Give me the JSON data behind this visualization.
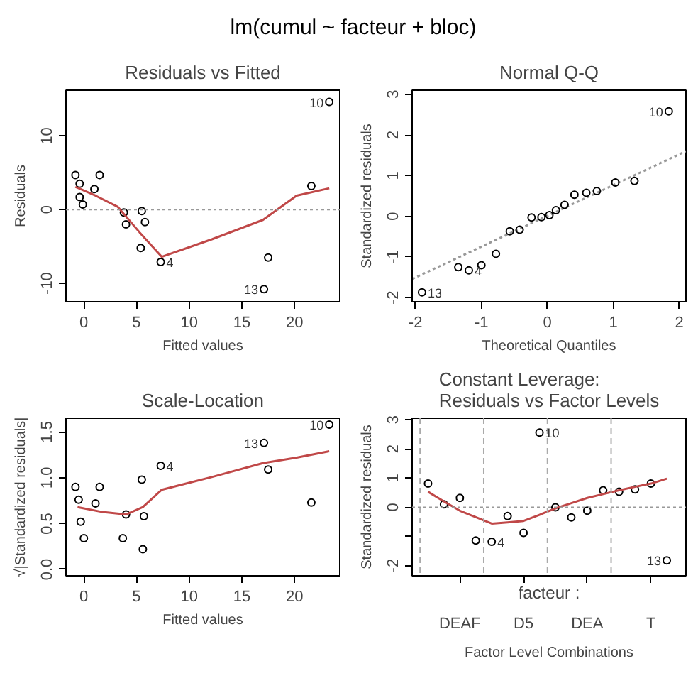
{
  "chart_data": [
    {
      "type": "other",
      "title": "lm(cumul ~ facteur + bloc)"
    },
    {
      "type": "scatter",
      "title": "Residuals vs Fitted",
      "xlabel": "Fitted values",
      "ylabel": "Residuals",
      "xlim": [
        -1.7,
        24.3
      ],
      "ylim": [
        -12.5,
        16.2
      ],
      "xticks": [
        0,
        5,
        10,
        15,
        20
      ],
      "yticks": [
        -10,
        0,
        10
      ],
      "series": [
        {
          "type": "scatter",
          "marker": "circle",
          "color": "#000000",
          "x": [
            -0.8,
            -0.4,
            -0.4,
            -0.1,
            1.0,
            1.5,
            3.8,
            4.0,
            5.5,
            5.8,
            5.4,
            7.3,
            17.1,
            17.5,
            21.6,
            23.3
          ],
          "values": [
            4.7,
            3.5,
            1.7,
            0.7,
            2.8,
            4.7,
            -0.4,
            -2.0,
            -0.2,
            -1.7,
            -5.2,
            -7.1,
            -10.8,
            -6.5,
            3.2,
            14.6
          ]
        },
        {
          "type": "line",
          "line_style": "solid",
          "color": "#c04848",
          "x": [
            -0.8,
            1.1,
            3.2,
            5.3,
            7.4,
            12.2,
            17.0,
            20.2,
            23.3
          ],
          "values": [
            3.1,
            1.9,
            0.4,
            -3.1,
            -6.4,
            -4.0,
            -1.4,
            1.9,
            2.9
          ]
        }
      ],
      "ref_lines": [
        {
          "axis": "y",
          "value": 0,
          "color": "#999999",
          "line_style": "dotted"
        }
      ],
      "annotations": [
        {
          "text": "10",
          "x": 23.3,
          "y": 14.6
        },
        {
          "text": "13",
          "x": 17.1,
          "y": -10.8
        },
        {
          "text": "4",
          "x": 7.3,
          "y": -7.1
        }
      ]
    },
    {
      "type": "scatter",
      "title": "Normal Q-Q",
      "xlabel": "Theoretical Quantiles",
      "ylabel": "Standardized residuals",
      "xlim": [
        -2.05,
        2.1
      ],
      "ylim": [
        -2.1,
        3.1
      ],
      "xticks": [
        -2,
        -1,
        0,
        1,
        2
      ],
      "yticks": [
        -2,
        -1,
        0,
        1,
        2,
        3
      ],
      "series": [
        {
          "type": "line",
          "line_style": "dotted",
          "color": "#999999",
          "x": [
            -2.05,
            2.1
          ],
          "values": [
            -1.54,
            1.6
          ]
        },
        {
          "type": "scatter",
          "marker": "circle",
          "color": "#000000",
          "x": [
            -1.9,
            -1.35,
            -1.19,
            -1.0,
            -0.78,
            -0.57,
            -0.42,
            -0.24,
            -0.09,
            0.03,
            0.13,
            0.26,
            0.41,
            0.59,
            0.75,
            1.03,
            1.32,
            1.84
          ],
          "values": [
            -1.87,
            -1.25,
            -1.33,
            -1.2,
            -0.92,
            -0.37,
            -0.33,
            -0.03,
            -0.02,
            0.03,
            0.15,
            0.28,
            0.53,
            0.58,
            0.62,
            0.83,
            0.87,
            2.58
          ]
        }
      ],
      "annotations": [
        {
          "text": "10",
          "x": 1.84,
          "y": 2.58
        },
        {
          "text": "13",
          "x": -1.9,
          "y": -1.87
        },
        {
          "text": "4",
          "x": -1.19,
          "y": -1.33
        }
      ]
    },
    {
      "type": "scatter",
      "title": "Scale-Location",
      "xlabel": "Fitted values",
      "ylabel": "√|Standardized residuals|",
      "xlim": [
        -1.7,
        24.3
      ],
      "ylim": [
        -0.07,
        1.65
      ],
      "xticks": [
        0,
        5,
        10,
        15,
        20
      ],
      "yticks": [
        {
          "value": 0,
          "label": "0.0"
        },
        0.5,
        {
          "value": 1,
          "label": "1.0"
        },
        1.5
      ],
      "series": [
        {
          "type": "scatter",
          "marker": "circle",
          "color": "#000000",
          "x": [
            -0.8,
            -0.5,
            -0.3,
            0.0,
            1.1,
            1.5,
            4.0,
            3.7,
            5.5,
            5.7,
            5.6,
            7.3,
            17.1,
            17.5,
            21.6,
            23.3
          ],
          "values": [
            0.9,
            0.76,
            0.52,
            0.34,
            0.72,
            0.9,
            0.6,
            0.34,
            0.98,
            0.58,
            0.22,
            1.13,
            1.38,
            1.09,
            0.73,
            1.58
          ]
        },
        {
          "type": "line",
          "line_style": "solid",
          "color": "#c04848",
          "x": [
            -0.6,
            1.6,
            4.0,
            5.6,
            7.4,
            12.2,
            17.0,
            20.2,
            23.3
          ],
          "values": [
            0.68,
            0.63,
            0.6,
            0.68,
            0.87,
            1.01,
            1.16,
            1.22,
            1.29
          ]
        }
      ],
      "annotations": [
        {
          "text": "10",
          "x": 23.3,
          "y": 1.58
        },
        {
          "text": "13",
          "x": 17.1,
          "y": 1.38
        },
        {
          "text": "4",
          "x": 7.3,
          "y": 1.13
        }
      ]
    },
    {
      "type": "scatter",
      "title": "Constant Leverage:\nResiduals vs Factor Levels",
      "xlabel": "Factor Level Combinations",
      "ylabel": "Standardized residuals",
      "ylim": [
        -2.35,
        3.05
      ],
      "categories": [
        null,
        null,
        "DEAF",
        null,
        null,
        null,
        "D5",
        null,
        null,
        null,
        "DEA",
        null,
        null,
        null,
        "T",
        null
      ],
      "yticks": [
        -2,
        {
          "value": -1,
          "label": null
        },
        0,
        1,
        2,
        3
      ],
      "series": [
        {
          "type": "scatter",
          "marker": "circle",
          "color": "#000000",
          "values": [
            0.81,
            0.1,
            0.32,
            -1.14,
            null,
            -0.3,
            -0.88,
            null,
            0.0,
            -0.35,
            -0.12,
            0.58,
            0.53,
            0.61,
            0.81,
            null
          ]
        },
        {
          "type": "scatter",
          "name": "4",
          "marker": "circle",
          "color": "#000000",
          "values": [
            null,
            null,
            null,
            null,
            -1.18,
            null,
            null,
            null,
            null,
            null,
            null,
            null,
            null,
            null,
            null,
            null
          ]
        },
        {
          "type": "scatter",
          "name": "10",
          "marker": "circle",
          "color": "#000000",
          "values": [
            null,
            null,
            null,
            null,
            null,
            null,
            null,
            2.56,
            null,
            null,
            null,
            null,
            null,
            null,
            null,
            null
          ]
        },
        {
          "type": "scatter",
          "name": "13",
          "marker": "circle",
          "color": "#000000",
          "values": [
            null,
            null,
            null,
            null,
            null,
            null,
            null,
            null,
            null,
            null,
            null,
            null,
            null,
            null,
            null,
            -1.82
          ]
        },
        {
          "type": "line",
          "line_style": "solid",
          "color": "#c04848",
          "values": [
            0.53,
            0.2,
            -0.12,
            -0.34,
            -0.56,
            -0.52,
            -0.47,
            -0.26,
            -0.04,
            0.14,
            0.32,
            0.45,
            0.58,
            0.7,
            0.81,
            0.98
          ]
        }
      ],
      "ref_lines": [
        {
          "axis": "y",
          "value": 0,
          "color": "#999999",
          "line_style": "dotted"
        }
      ],
      "annotations": [
        "facteur :"
      ]
    }
  ]
}
